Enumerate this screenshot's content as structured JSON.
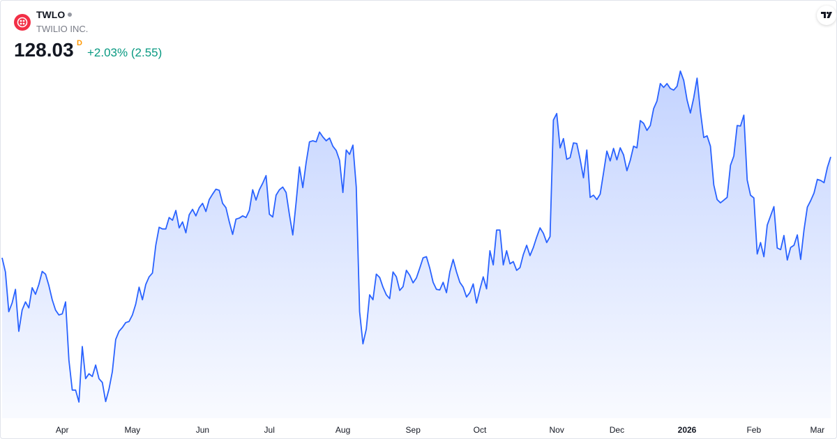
{
  "header": {
    "symbol": "TWLO",
    "company": "TWILIO INC.",
    "price": "128.03",
    "interval": "D",
    "change": "+2.03% (2.55)"
  },
  "chart_data": {
    "type": "area",
    "color": "#2962ff",
    "categories": [
      null,
      null,
      null,
      null,
      null,
      null,
      null,
      null,
      null,
      null,
      null,
      null,
      null,
      null,
      null,
      null,
      null,
      null,
      "Apr",
      null,
      null,
      null,
      null,
      null,
      null,
      null,
      null,
      null,
      null,
      null,
      null,
      null,
      null,
      null,
      null,
      null,
      null,
      null,
      null,
      "May",
      null,
      null,
      null,
      null,
      null,
      null,
      null,
      null,
      null,
      null,
      null,
      null,
      null,
      null,
      null,
      null,
      null,
      null,
      null,
      null,
      "Jun",
      null,
      null,
      null,
      null,
      null,
      null,
      null,
      null,
      null,
      null,
      null,
      null,
      null,
      null,
      null,
      null,
      null,
      null,
      null,
      "Jul",
      null,
      null,
      null,
      null,
      null,
      null,
      null,
      null,
      null,
      null,
      null,
      null,
      null,
      null,
      null,
      null,
      null,
      null,
      null,
      null,
      null,
      "Aug",
      null,
      null,
      null,
      null,
      null,
      null,
      null,
      null,
      null,
      null,
      null,
      null,
      null,
      null,
      null,
      null,
      null,
      null,
      null,
      null,
      "Sep",
      null,
      null,
      null,
      null,
      null,
      null,
      null,
      null,
      null,
      null,
      null,
      null,
      null,
      null,
      null,
      null,
      null,
      null,
      null,
      "Oct",
      null,
      null,
      null,
      null,
      null,
      null,
      null,
      null,
      null,
      null,
      null,
      null,
      null,
      null,
      null,
      null,
      null,
      null,
      null,
      null,
      null,
      null,
      "Nov",
      null,
      null,
      null,
      null,
      null,
      null,
      null,
      null,
      null,
      null,
      null,
      null,
      null,
      null,
      null,
      null,
      null,
      "Dec",
      null,
      null,
      null,
      null,
      null,
      null,
      null,
      null,
      null,
      null,
      null,
      null,
      null,
      null,
      null,
      null,
      null,
      null,
      null,
      null,
      "2026",
      null,
      null,
      null,
      null,
      null,
      null,
      null,
      null,
      null,
      null,
      null,
      null,
      null,
      null,
      null,
      null,
      null,
      null,
      null,
      "Feb",
      null,
      null,
      null,
      null,
      null,
      null,
      null,
      null,
      null,
      null,
      null,
      null,
      null,
      null,
      null,
      null,
      null,
      null,
      "Mar",
      null,
      null,
      null,
      null
    ],
    "values": [
      109.5,
      106.9,
      99.6,
      101.2,
      103.7,
      96.0,
      99.9,
      101.4,
      100.3,
      104.0,
      102.8,
      104.6,
      107.0,
      106.5,
      104.4,
      101.8,
      99.9,
      99.0,
      99.2,
      101.4,
      90.7,
      85.2,
      85.2,
      83.0,
      93.2,
      87.3,
      88.2,
      87.7,
      89.8,
      87.3,
      86.6,
      83.1,
      85.4,
      88.6,
      94.5,
      96.0,
      96.7,
      97.6,
      97.8,
      99.0,
      101.0,
      104.1,
      101.8,
      104.6,
      106.0,
      106.7,
      111.8,
      115.1,
      114.8,
      114.8,
      116.9,
      116.4,
      118.2,
      115.0,
      116.1,
      114.1,
      117.4,
      118.4,
      117.2,
      118.7,
      119.5,
      118.0,
      120.2,
      121.2,
      122.1,
      121.9,
      119.5,
      118.7,
      116.1,
      113.8,
      116.6,
      116.8,
      117.2,
      116.9,
      118.2,
      122.0,
      120.1,
      122.0,
      123.2,
      124.6,
      117.5,
      117.0,
      121.0,
      122.0,
      122.5,
      121.5,
      117.4,
      113.7,
      119.7,
      126.2,
      122.4,
      127.0,
      130.8,
      131.0,
      130.8,
      132.6,
      131.7,
      131.0,
      131.5,
      130.0,
      129.2,
      127.4,
      121.5,
      129.3,
      128.5,
      130.2,
      122.5,
      99.6,
      93.7,
      96.4,
      102.7,
      101.8,
      106.5,
      105.9,
      104.1,
      102.7,
      102.0,
      106.9,
      106.0,
      103.5,
      104.2,
      107.2,
      106.3,
      104.9,
      105.8,
      107.6,
      109.5,
      109.7,
      107.6,
      105.0,
      103.7,
      103.6,
      105.0,
      103.1,
      106.9,
      109.2,
      106.9,
      105.0,
      104.1,
      102.3,
      103.1,
      104.7,
      101.2,
      103.7,
      106.0,
      103.8,
      110.8,
      108.2,
      114.6,
      114.6,
      108.2,
      110.8,
      108.4,
      108.8,
      107.2,
      107.7,
      110.1,
      111.8,
      109.9,
      111.4,
      113.3,
      115.0,
      114.0,
      112.3,
      113.4,
      134.8,
      136.0,
      129.7,
      131.4,
      127.6,
      127.9,
      130.6,
      130.5,
      127.6,
      124.2,
      129.3,
      120.6,
      121.0,
      120.2,
      121.2,
      125.1,
      129.1,
      127.3,
      129.6,
      127.5,
      129.7,
      128.4,
      125.5,
      127.4,
      130.0,
      129.7,
      134.7,
      134.2,
      132.9,
      133.8,
      136.9,
      138.3,
      141.5,
      140.8,
      141.5,
      140.6,
      140.3,
      141.0,
      143.8,
      142.1,
      138.5,
      136.1,
      138.9,
      142.5,
      136.4,
      131.6,
      131.9,
      130.0,
      122.9,
      120.2,
      119.6,
      120.1,
      120.6,
      126.5,
      128.2,
      133.8,
      133.7,
      135.7,
      123.8,
      121.0,
      120.5,
      110.2,
      112.3,
      109.7,
      115.5,
      117.2,
      118.9,
      111.3,
      111.0,
      113.6,
      109.1,
      111.4,
      111.8,
      113.7,
      109.2,
      114.6,
      118.8,
      120.0,
      121.4,
      123.9,
      123.7,
      123.3,
      126.1,
      128.03
    ]
  }
}
